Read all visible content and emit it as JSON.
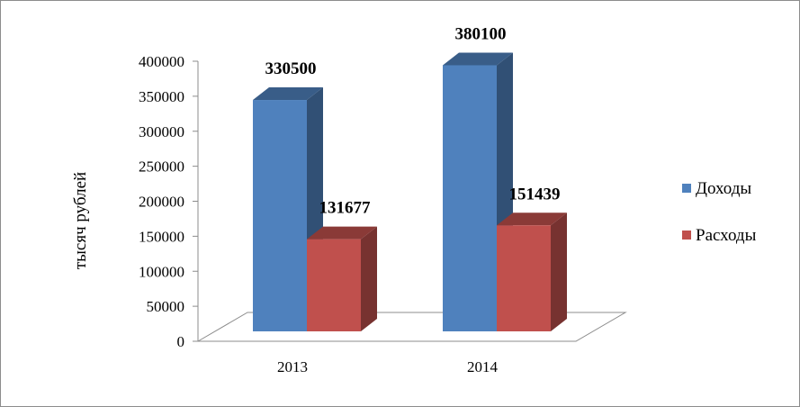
{
  "chart_data": {
    "type": "bar",
    "categories": [
      "2013",
      "2014"
    ],
    "series": [
      {
        "name": "Доходы",
        "values": [
          330500,
          380100
        ],
        "color": "#4F81BD"
      },
      {
        "name": "Расходы",
        "values": [
          131677,
          151439
        ],
        "color": "#C0504D"
      }
    ],
    "ylabel": "тысяч рублей",
    "ylim": [
      0,
      400000
    ],
    "yticks": [
      "0",
      "50000",
      "100000",
      "150000",
      "200000",
      "250000",
      "300000",
      "350000",
      "400000"
    ],
    "data_labels": [
      "330500",
      "131677",
      "380100",
      "151439"
    ],
    "legend_position": "right",
    "style": "3d-column"
  }
}
